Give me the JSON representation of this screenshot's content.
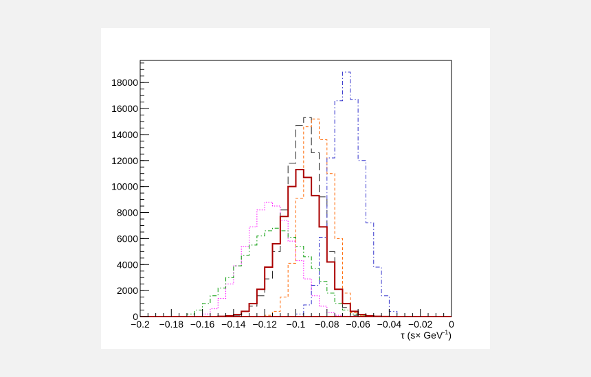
{
  "chart_data": {
    "type": "step",
    "title": "",
    "xlabel": "τ (s× GeV",
    "xlabel_superscript": "-1",
    "xlabel_suffix": ")",
    "ylabel": "",
    "xlim": [
      -0.2,
      0
    ],
    "ylim": [
      0,
      19700
    ],
    "grid": false,
    "legend": "none",
    "bin_width": 0.005,
    "x_ticks": [
      -0.2,
      -0.18,
      -0.16,
      -0.14,
      -0.12,
      -0.1,
      -0.08,
      -0.06,
      -0.04,
      -0.02,
      0
    ],
    "x_tick_labels": [
      "−0.2",
      "−0.18",
      "−0.16",
      "−0.14",
      "−0.12",
      "−0.1",
      "−0.08",
      "−0.06",
      "−0.04",
      "−0.02",
      "0"
    ],
    "y_ticks": [
      0,
      2000,
      4000,
      6000,
      8000,
      10000,
      12000,
      14000,
      16000,
      18000
    ],
    "y_tick_labels": [
      "0",
      "2000",
      "4000",
      "6000",
      "8000",
      "10000",
      "12000",
      "14000",
      "16000",
      "18000"
    ],
    "series": [
      {
        "color": "#ff00ff",
        "dash": "dotted",
        "width": 1,
        "x": [
          -0.16,
          -0.155,
          -0.15,
          -0.145,
          -0.14,
          -0.135,
          -0.13,
          -0.125,
          -0.12,
          -0.115,
          -0.11,
          -0.105,
          -0.1,
          -0.095,
          -0.09,
          -0.085,
          -0.08,
          -0.075,
          -0.07,
          -0.065
        ],
        "values": [
          200,
          600,
          1400,
          2500,
          3900,
          5400,
          6900,
          8200,
          8800,
          8500,
          7400,
          5800,
          4300,
          2900,
          1600,
          800,
          300,
          100,
          30,
          10
        ]
      },
      {
        "color": "#009900",
        "dash": "dashdot",
        "width": 1,
        "x": [
          -0.17,
          -0.165,
          -0.16,
          -0.155,
          -0.15,
          -0.145,
          -0.14,
          -0.135,
          -0.13,
          -0.125,
          -0.12,
          -0.115,
          -0.11,
          -0.105,
          -0.1,
          -0.095,
          -0.09,
          -0.085,
          -0.08,
          -0.075,
          -0.07,
          -0.065,
          -0.06
        ],
        "values": [
          200,
          500,
          1000,
          1600,
          2200,
          3000,
          3900,
          4700,
          5500,
          6200,
          6600,
          6800,
          6600,
          6100,
          5400,
          4600,
          3700,
          2700,
          1800,
          1000,
          500,
          200,
          50
        ]
      },
      {
        "color": "#222222",
        "dash": "longdash",
        "width": 1,
        "x": [
          -0.14,
          -0.135,
          -0.13,
          -0.125,
          -0.12,
          -0.115,
          -0.11,
          -0.105,
          -0.1,
          -0.095,
          -0.09,
          -0.085,
          -0.08,
          -0.075,
          -0.07,
          -0.065
        ],
        "values": [
          100,
          400,
          800,
          1600,
          2900,
          5000,
          8200,
          11800,
          14700,
          15300,
          12600,
          9200,
          5000,
          2100,
          700,
          100
        ]
      },
      {
        "color": "#ff6600",
        "dash": "dashed",
        "width": 1,
        "x": [
          -0.12,
          -0.115,
          -0.11,
          -0.105,
          -0.1,
          -0.095,
          -0.09,
          -0.085,
          -0.08,
          -0.075,
          -0.07,
          -0.065,
          -0.06
        ],
        "values": [
          100,
          400,
          1500,
          4100,
          9100,
          14600,
          15200,
          13600,
          11000,
          6000,
          1800,
          300,
          50
        ]
      },
      {
        "color": "#3333cc",
        "dash": "dashdot",
        "width": 1,
        "x": [
          -0.1,
          -0.095,
          -0.09,
          -0.085,
          -0.08,
          -0.075,
          -0.07,
          -0.065,
          -0.06,
          -0.055,
          -0.05,
          -0.045,
          -0.04
        ],
        "values": [
          200,
          900,
          2400,
          6100,
          12200,
          16600,
          18800,
          16700,
          12000,
          7200,
          3800,
          1600,
          400
        ]
      },
      {
        "color": "#aa0000",
        "dash": "solid",
        "width": 2,
        "x": [
          -0.15,
          -0.145,
          -0.14,
          -0.135,
          -0.13,
          -0.125,
          -0.12,
          -0.115,
          -0.11,
          -0.105,
          -0.1,
          -0.095,
          -0.09,
          -0.085,
          -0.08,
          -0.075,
          -0.07,
          -0.065,
          -0.06,
          -0.055,
          -0.05,
          -0.045
        ],
        "values": [
          20,
          50,
          150,
          400,
          1000,
          2100,
          3800,
          5600,
          7700,
          10000,
          11300,
          10700,
          9300,
          6900,
          4200,
          2100,
          1000,
          400,
          150,
          50,
          20,
          5
        ]
      }
    ]
  }
}
